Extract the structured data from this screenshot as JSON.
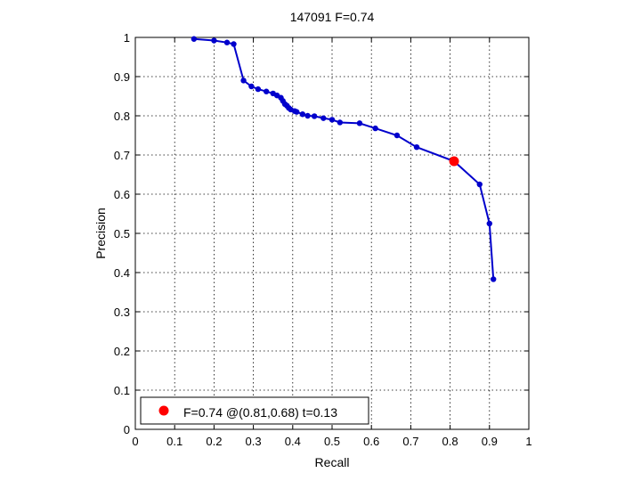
{
  "chart_data": {
    "type": "line",
    "title": "147091 F=0.74",
    "xlabel": "Recall",
    "ylabel": "Precision",
    "xlim": [
      0,
      1
    ],
    "ylim": [
      0,
      1
    ],
    "xticks": [
      "0",
      "0.1",
      "0.2",
      "0.3",
      "0.4",
      "0.5",
      "0.6",
      "0.7",
      "0.8",
      "0.9",
      "1"
    ],
    "yticks": [
      "0",
      "0.1",
      "0.2",
      "0.3",
      "0.4",
      "0.5",
      "0.6",
      "0.7",
      "0.8",
      "0.9",
      "1"
    ],
    "grid": true,
    "legend_position": "bottom-left",
    "series": [
      {
        "color": "#0000cc",
        "points": [
          [
            0.149,
            0.996
          ],
          [
            0.2,
            0.992
          ],
          [
            0.233,
            0.987
          ],
          [
            0.25,
            0.983
          ],
          [
            0.275,
            0.89
          ],
          [
            0.295,
            0.875
          ],
          [
            0.312,
            0.868
          ],
          [
            0.333,
            0.862
          ],
          [
            0.35,
            0.857
          ],
          [
            0.36,
            0.852
          ],
          [
            0.37,
            0.846
          ],
          [
            0.375,
            0.838
          ],
          [
            0.38,
            0.83
          ],
          [
            0.385,
            0.826
          ],
          [
            0.39,
            0.82
          ],
          [
            0.395,
            0.816
          ],
          [
            0.405,
            0.812
          ],
          [
            0.41,
            0.81
          ],
          [
            0.425,
            0.804
          ],
          [
            0.438,
            0.8
          ],
          [
            0.455,
            0.799
          ],
          [
            0.478,
            0.794
          ],
          [
            0.5,
            0.79
          ],
          [
            0.52,
            0.783
          ],
          [
            0.57,
            0.781
          ],
          [
            0.61,
            0.768
          ],
          [
            0.665,
            0.75
          ],
          [
            0.715,
            0.72
          ],
          [
            0.81,
            0.684
          ],
          [
            0.875,
            0.625
          ],
          [
            0.9,
            0.525
          ],
          [
            0.91,
            0.383
          ]
        ]
      }
    ],
    "highlight": {
      "x": 0.81,
      "y": 0.684,
      "color": "#ff0000"
    },
    "legend": [
      {
        "label": "F=0.74 @(0.81,0.68) t=0.13",
        "color": "#ff0000"
      }
    ]
  }
}
